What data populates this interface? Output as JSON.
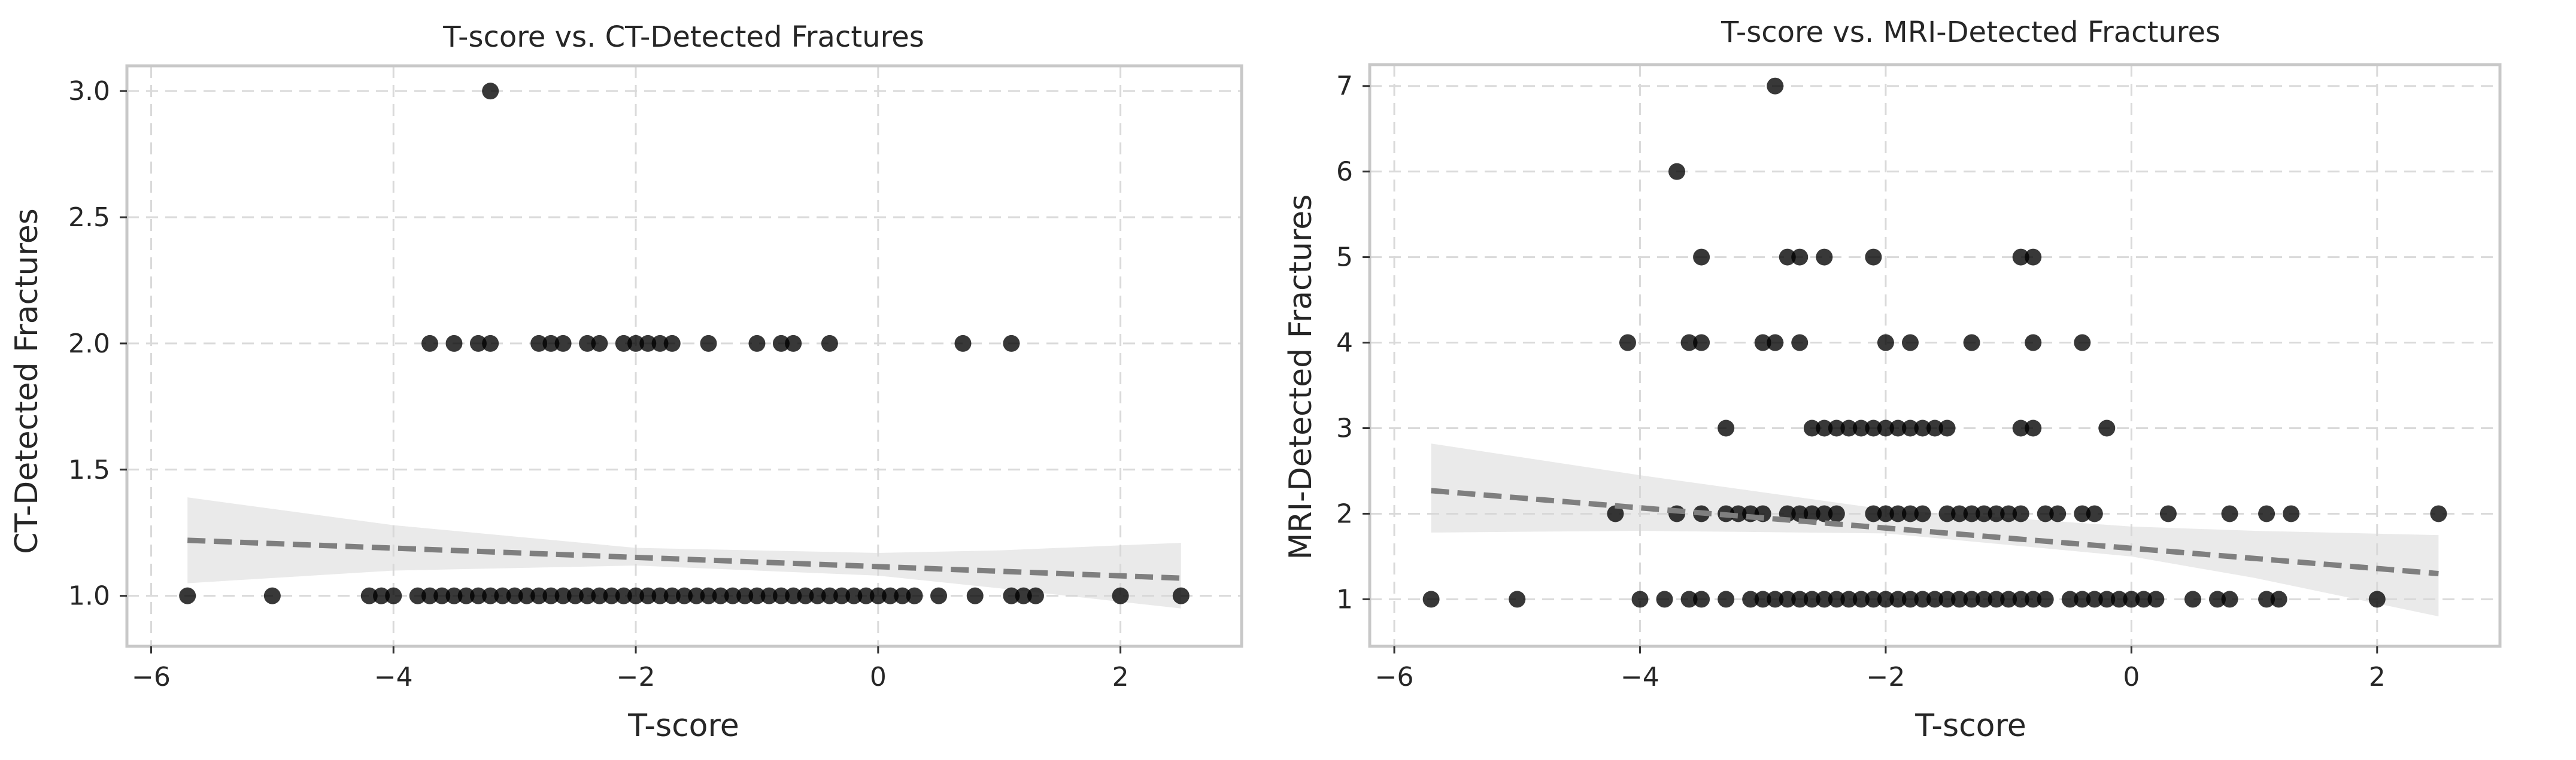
{
  "chart_data": [
    {
      "type": "scatter",
      "title": "T-score vs. CT-Detected Fractures",
      "xlabel": "T-score",
      "ylabel": "CT-Detected Fractures",
      "xlim": [
        -6.2,
        3.0
      ],
      "ylim": [
        0.8,
        3.1
      ],
      "xticks": [
        -6,
        -4,
        -2,
        0,
        2
      ],
      "yticks": [
        1.0,
        1.5,
        2.0,
        2.5,
        3.0
      ],
      "ytick_labels": [
        "1.0",
        "1.5",
        "2.0",
        "2.5",
        "3.0"
      ],
      "grid": true,
      "points": {
        "x": [
          -5.7,
          -5.0,
          -4.2,
          -4.1,
          -4.0,
          -3.8,
          -3.7,
          -3.6,
          -3.5,
          -3.4,
          -3.3,
          -3.2,
          -3.1,
          -3.0,
          -2.9,
          -2.8,
          -2.7,
          -2.6,
          -2.5,
          -2.4,
          -2.3,
          -2.2,
          -2.1,
          -2.0,
          -1.9,
          -1.8,
          -1.7,
          -1.6,
          -1.5,
          -1.4,
          -1.3,
          -1.2,
          -1.1,
          -1.0,
          -0.9,
          -0.8,
          -0.7,
          -0.6,
          -0.5,
          -0.4,
          -0.3,
          -0.2,
          -0.1,
          0.0,
          0.1,
          0.2,
          0.3,
          0.5,
          0.8,
          1.1,
          1.2,
          1.3,
          2.0,
          2.5,
          -3.7,
          -3.5,
          -3.3,
          -3.2,
          -2.8,
          -2.7,
          -2.6,
          -2.4,
          -2.3,
          -2.1,
          -2.0,
          -1.9,
          -1.8,
          -1.7,
          -1.4,
          -1.0,
          -0.8,
          -0.7,
          -0.4,
          0.7,
          1.1,
          -3.2
        ],
        "y": [
          1,
          1,
          1,
          1,
          1,
          1,
          1,
          1,
          1,
          1,
          1,
          1,
          1,
          1,
          1,
          1,
          1,
          1,
          1,
          1,
          1,
          1,
          1,
          1,
          1,
          1,
          1,
          1,
          1,
          1,
          1,
          1,
          1,
          1,
          1,
          1,
          1,
          1,
          1,
          1,
          1,
          1,
          1,
          1,
          1,
          1,
          1,
          1,
          1,
          1,
          1,
          1,
          1,
          1,
          2,
          2,
          2,
          2,
          2,
          2,
          2,
          2,
          2,
          2,
          2,
          2,
          2,
          2,
          2,
          2,
          2,
          2,
          2,
          2,
          2,
          3
        ]
      },
      "regression": {
        "x": [
          -5.7,
          2.5
        ],
        "y": [
          1.22,
          1.07
        ]
      },
      "confidence_band": {
        "x": [
          -5.7,
          -4.0,
          -2.0,
          0.0,
          1.0,
          2.5
        ],
        "lower": [
          1.05,
          1.1,
          1.12,
          1.08,
          1.03,
          0.95
        ],
        "upper": [
          1.39,
          1.28,
          1.19,
          1.17,
          1.18,
          1.21
        ]
      }
    },
    {
      "type": "scatter",
      "title": "T-score vs. MRI-Detected Fractures",
      "xlabel": "T-score",
      "ylabel": "MRI-Detected Fractures",
      "xlim": [
        -6.2,
        3.0
      ],
      "ylim": [
        0.45,
        7.25
      ],
      "xticks": [
        -6,
        -4,
        -2,
        0,
        2
      ],
      "yticks": [
        1,
        2,
        3,
        4,
        5,
        6,
        7
      ],
      "ytick_labels": [
        "1",
        "2",
        "3",
        "4",
        "5",
        "6",
        "7"
      ],
      "grid": true,
      "points": {
        "x": [
          -5.7,
          -5.0,
          -4.0,
          -3.8,
          -3.6,
          -3.5,
          -3.3,
          -3.1,
          -3.0,
          -2.9,
          -2.8,
          -2.7,
          -2.6,
          -2.5,
          -2.4,
          -2.3,
          -2.2,
          -2.1,
          -2.0,
          -1.9,
          -1.8,
          -1.7,
          -1.6,
          -1.5,
          -1.4,
          -1.3,
          -1.2,
          -1.1,
          -1.0,
          -0.9,
          -0.8,
          -0.7,
          -0.5,
          -0.4,
          -0.3,
          -0.2,
          -0.1,
          0.0,
          0.1,
          0.2,
          0.5,
          0.7,
          0.8,
          1.1,
          1.2,
          2.0,
          -4.2,
          -3.7,
          -3.5,
          -3.3,
          -3.2,
          -3.1,
          -3.0,
          -2.8,
          -2.7,
          -2.6,
          -2.5,
          -2.4,
          -2.1,
          -2.0,
          -1.9,
          -1.8,
          -1.7,
          -1.5,
          -1.4,
          -1.3,
          -1.2,
          -1.1,
          -1.0,
          -0.9,
          -0.7,
          -0.6,
          -0.4,
          -0.3,
          0.3,
          0.8,
          1.1,
          1.3,
          2.5,
          -3.3,
          -2.6,
          -2.5,
          -2.4,
          -2.3,
          -2.2,
          -2.1,
          -2.0,
          -1.9,
          -1.8,
          -1.7,
          -1.6,
          -1.5,
          -0.9,
          -0.8,
          -0.2,
          -4.1,
          -3.6,
          -3.5,
          -3.0,
          -2.9,
          -2.7,
          -2.0,
          -1.8,
          -1.3,
          -0.8,
          -0.4,
          -3.5,
          -2.8,
          -2.7,
          -2.5,
          -2.1,
          -0.9,
          -0.8,
          -3.7,
          -2.9
        ],
        "y": [
          1,
          1,
          1,
          1,
          1,
          1,
          1,
          1,
          1,
          1,
          1,
          1,
          1,
          1,
          1,
          1,
          1,
          1,
          1,
          1,
          1,
          1,
          1,
          1,
          1,
          1,
          1,
          1,
          1,
          1,
          1,
          1,
          1,
          1,
          1,
          1,
          1,
          1,
          1,
          1,
          1,
          1,
          1,
          1,
          1,
          1,
          2,
          2,
          2,
          2,
          2,
          2,
          2,
          2,
          2,
          2,
          2,
          2,
          2,
          2,
          2,
          2,
          2,
          2,
          2,
          2,
          2,
          2,
          2,
          2,
          2,
          2,
          2,
          2,
          2,
          2,
          2,
          2,
          2,
          3,
          3,
          3,
          3,
          3,
          3,
          3,
          3,
          3,
          3,
          3,
          3,
          3,
          3,
          3,
          3,
          4,
          4,
          4,
          4,
          4,
          4,
          4,
          4,
          4,
          4,
          4,
          5,
          5,
          5,
          5,
          5,
          5,
          5,
          6,
          7
        ]
      },
      "regression": {
        "x": [
          -5.7,
          2.5
        ],
        "y": [
          2.27,
          1.3
        ]
      },
      "confidence_band": {
        "x": [
          -5.7,
          -4.0,
          -2.0,
          0.0,
          1.0,
          2.5
        ],
        "lower": [
          1.78,
          1.8,
          1.77,
          1.5,
          1.25,
          0.8
        ],
        "upper": [
          2.82,
          2.45,
          2.05,
          1.85,
          1.8,
          1.75
        ]
      }
    }
  ]
}
